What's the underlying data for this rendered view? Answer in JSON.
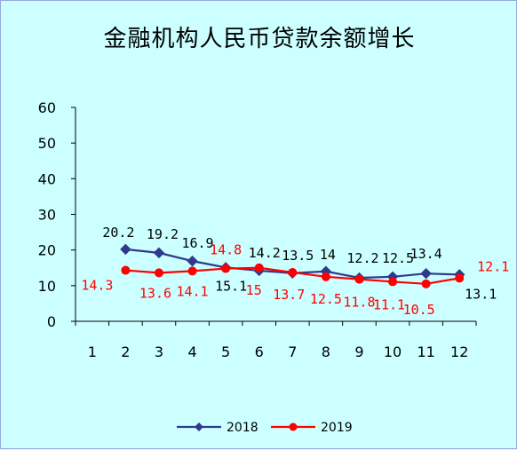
{
  "chart_data": {
    "type": "line",
    "title": "金融机构人民币贷款余额增长",
    "categories": [
      "1",
      "2",
      "3",
      "4",
      "5",
      "6",
      "7",
      "8",
      "9",
      "10",
      "11",
      "12"
    ],
    "ylim": [
      0,
      60
    ],
    "yticks": [
      "0",
      "10",
      "20",
      "30",
      "40",
      "50",
      "60"
    ],
    "grid": false,
    "legend_position": "bottom",
    "series": [
      {
        "name": "2018",
        "color": "#2e3a8c",
        "marker": "diamond",
        "x": [
          "2",
          "3",
          "4",
          "5",
          "6",
          "7",
          "8",
          "9",
          "10",
          "11",
          "12"
        ],
        "values": [
          20.2,
          19.2,
          16.9,
          15.1,
          14.2,
          13.5,
          14,
          12.2,
          12.5,
          13.4,
          13.1
        ],
        "labels": [
          "20.2",
          "19.2",
          "16.9",
          "15.1",
          "14.2",
          "13.5",
          "14",
          "12.2",
          "12.5",
          "13.4",
          "13.1"
        ]
      },
      {
        "name": "2019",
        "color": "#ff0000",
        "marker": "circle",
        "x": [
          "2",
          "3",
          "4",
          "5",
          "6",
          "7",
          "8",
          "9",
          "10",
          "11",
          "12"
        ],
        "values": [
          14.3,
          13.6,
          14.1,
          14.8,
          15,
          13.7,
          12.5,
          11.8,
          11.1,
          10.5,
          12.1
        ],
        "labels": [
          "14.3",
          "13.6",
          "14.1",
          "14.8",
          "15",
          "13.7",
          "12.5",
          "11.8",
          "11.1",
          "10.5",
          "12.1"
        ]
      }
    ]
  }
}
